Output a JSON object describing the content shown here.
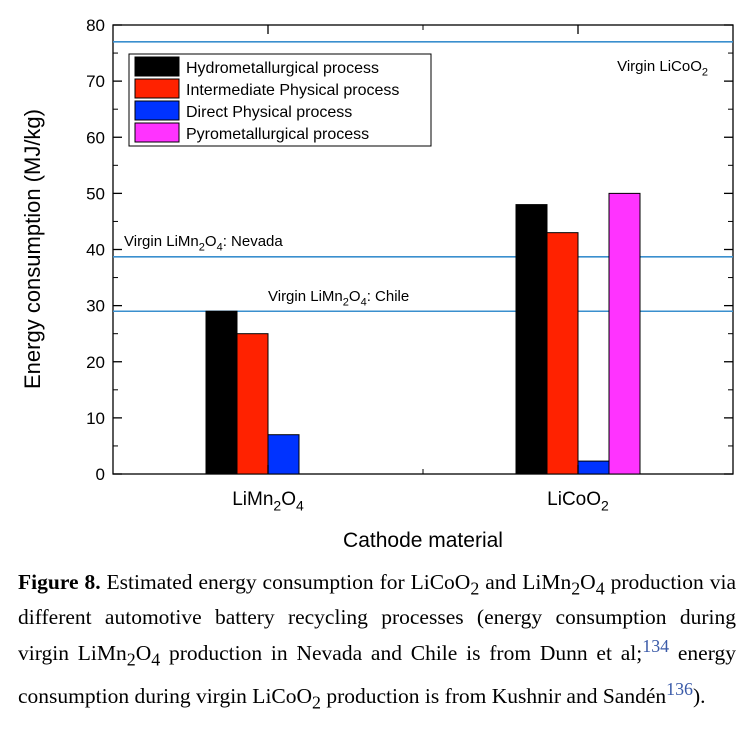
{
  "chart_data": {
    "type": "bar",
    "xlabel": "Cathode material",
    "ylabel": "Energy consumption (MJ/kg)",
    "ylim": [
      0,
      80
    ],
    "yticks": [
      0,
      10,
      20,
      30,
      40,
      50,
      60,
      70,
      80
    ],
    "categories": [
      {
        "base": "LiMn",
        "s1": "2",
        "mid": "O",
        "s2": "4"
      },
      {
        "base": "LiCoO",
        "s1": "2",
        "mid": "",
        "s2": ""
      }
    ],
    "series": [
      {
        "name": "Hydrometallurgical process",
        "color": "#000000",
        "values": [
          29,
          48
        ]
      },
      {
        "name": "Intermediate Physical process",
        "color": "#ff2200",
        "values": [
          25,
          43
        ]
      },
      {
        "name": "Direct Physical process",
        "color": "#0033ff",
        "values": [
          7,
          2.3
        ]
      },
      {
        "name": "Pyrometallurgical process",
        "color": "#ff33ff",
        "values": [
          null,
          50
        ]
      }
    ],
    "reference_lines": [
      {
        "value": 77,
        "label": {
          "base": "Virgin LiCoO",
          "s1": "2",
          "mid": "",
          "s2": "",
          "tail": ""
        }
      },
      {
        "value": 38.7,
        "label": {
          "base": "Virgin LiMn",
          "s1": "2",
          "mid": "O",
          "s2": "4",
          "tail": ": Nevada"
        }
      },
      {
        "value": 29,
        "label": {
          "base": "Virgin LiMn",
          "s1": "2",
          "mid": "O",
          "s2": "4",
          "tail": ": Chile"
        }
      }
    ],
    "line_color": "#3a8fce",
    "legend_position": "top-left"
  },
  "caption": {
    "figure_label": "Figure 8.",
    "t1": " Estimated energy consumption for LiCoO",
    "s1": "2",
    "t2": " and LiMn",
    "s2": "2",
    "t3": "O",
    "s3": "4",
    "t4": " production via different automotive battery recycling processes (energy consumption during virgin LiMn",
    "s4": "2",
    "t5": "O",
    "s5": "4",
    "t6": " production in Nevada and Chile is from Dunn et al;",
    "ref1": "134",
    "t7": " energy consumption during virgin LiCoO",
    "s6": "2",
    "t8": " production is from Kushnir and Sandén",
    "ref2": "136",
    "t9": ")."
  }
}
